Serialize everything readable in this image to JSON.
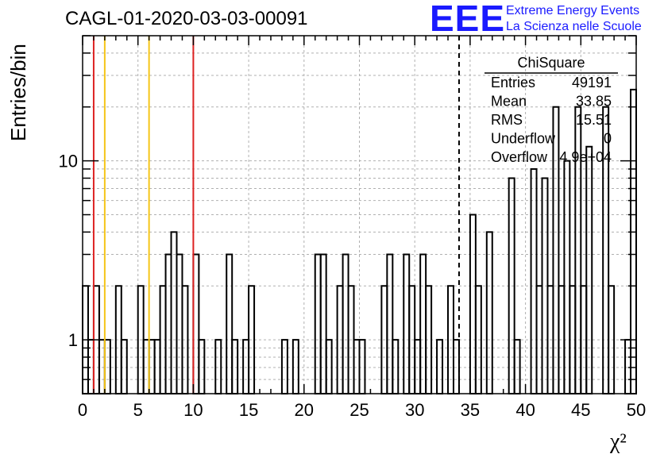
{
  "header": {
    "title": "CAGL-01-2020-03-03-00091",
    "logo_letters": "EEE",
    "logo_line_1": "Extreme Energy Events",
    "logo_line_2": "La Scienza nelle Scuole"
  },
  "stats_box": {
    "title": "ChiSquare",
    "rows": [
      {
        "label": "Entries",
        "value": "49191"
      },
      {
        "label": "Mean",
        "value": "33.85"
      },
      {
        "label": "RMS",
        "value": "15.51"
      },
      {
        "label": "Underflow",
        "value": "0"
      },
      {
        "label": "Overflow",
        "value": "4.9e+04"
      }
    ]
  },
  "chart_data": {
    "type": "histogram",
    "xlabel": "χ²",
    "ylabel": "Entries/bin",
    "xlim": [
      0,
      50
    ],
    "ylim": [
      0.5,
      50
    ],
    "y_scale": "log",
    "grid": true,
    "bin_width": 0.5,
    "x_ticks": [
      0,
      5,
      10,
      15,
      20,
      25,
      30,
      35,
      40,
      45,
      50
    ],
    "x_tick_labels": [
      "0",
      "5",
      "10",
      "15",
      "20",
      "25",
      "30",
      "35",
      "40",
      "45",
      "50"
    ],
    "y_ticks": [
      1,
      10
    ],
    "y_tick_labels": [
      "1",
      "10"
    ],
    "bins": [
      [
        0.0,
        2
      ],
      [
        0.5,
        1
      ],
      [
        1.0,
        2
      ],
      [
        1.5,
        1
      ],
      [
        2.0,
        1
      ],
      [
        2.5,
        0
      ],
      [
        3.0,
        2
      ],
      [
        3.5,
        1
      ],
      [
        4.0,
        0
      ],
      [
        4.5,
        0
      ],
      [
        5.0,
        2
      ],
      [
        5.5,
        1
      ],
      [
        6.0,
        1
      ],
      [
        6.5,
        1
      ],
      [
        7.0,
        2
      ],
      [
        7.5,
        3
      ],
      [
        8.0,
        4
      ],
      [
        8.5,
        3
      ],
      [
        9.0,
        2
      ],
      [
        9.5,
        0
      ],
      [
        10.0,
        3
      ],
      [
        10.5,
        1
      ],
      [
        11.0,
        0
      ],
      [
        11.5,
        0
      ],
      [
        12.0,
        1
      ],
      [
        12.5,
        0
      ],
      [
        13.0,
        3
      ],
      [
        13.5,
        1
      ],
      [
        14.0,
        0
      ],
      [
        14.5,
        1
      ],
      [
        15.0,
        2
      ],
      [
        15.5,
        0
      ],
      [
        16.0,
        0
      ],
      [
        16.5,
        0
      ],
      [
        17.0,
        0
      ],
      [
        17.5,
        0
      ],
      [
        18.0,
        1
      ],
      [
        18.5,
        0
      ],
      [
        19.0,
        1
      ],
      [
        19.5,
        0
      ],
      [
        20.0,
        0
      ],
      [
        20.5,
        0
      ],
      [
        21.0,
        3
      ],
      [
        21.5,
        3
      ],
      [
        22.0,
        1
      ],
      [
        22.5,
        0
      ],
      [
        23.0,
        2
      ],
      [
        23.5,
        3
      ],
      [
        24.0,
        2
      ],
      [
        24.5,
        1
      ],
      [
        25.0,
        1
      ],
      [
        25.5,
        0
      ],
      [
        26.0,
        0
      ],
      [
        26.5,
        0
      ],
      [
        27.0,
        2
      ],
      [
        27.5,
        3
      ],
      [
        28.0,
        1
      ],
      [
        28.5,
        0
      ],
      [
        29.0,
        3
      ],
      [
        29.5,
        2
      ],
      [
        30.0,
        1
      ],
      [
        30.5,
        3
      ],
      [
        31.0,
        2
      ],
      [
        31.5,
        0
      ],
      [
        32.0,
        1
      ],
      [
        32.5,
        0
      ],
      [
        33.0,
        2
      ],
      [
        33.5,
        1
      ],
      [
        34.0,
        0
      ],
      [
        34.5,
        0
      ],
      [
        35.0,
        5
      ],
      [
        35.5,
        2
      ],
      [
        36.0,
        0
      ],
      [
        36.5,
        4
      ],
      [
        37.0,
        0
      ],
      [
        37.5,
        0
      ],
      [
        38.0,
        0
      ],
      [
        38.5,
        8
      ],
      [
        39.0,
        1
      ],
      [
        39.5,
        0
      ],
      [
        40.0,
        0
      ],
      [
        40.5,
        9
      ],
      [
        41.0,
        2
      ],
      [
        41.5,
        8
      ],
      [
        42.0,
        2
      ],
      [
        42.5,
        20
      ],
      [
        43.0,
        2
      ],
      [
        43.5,
        10
      ],
      [
        44.0,
        2
      ],
      [
        44.5,
        20
      ],
      [
        45.0,
        2
      ],
      [
        45.5,
        12
      ],
      [
        46.0,
        0
      ],
      [
        46.5,
        0
      ],
      [
        47.0,
        20
      ],
      [
        47.5,
        2
      ],
      [
        48.0,
        0
      ],
      [
        48.5,
        0
      ],
      [
        49.0,
        1
      ],
      [
        49.5,
        25
      ]
    ],
    "vertical_lines": [
      {
        "x": 1,
        "color": "#dd2222"
      },
      {
        "x": 2,
        "color": "#f5c518"
      },
      {
        "x": 6,
        "color": "#f5c518"
      },
      {
        "x": 10,
        "color": "#dd2222"
      },
      {
        "x": 34,
        "color": "#000000",
        "style": "dashed"
      }
    ]
  }
}
